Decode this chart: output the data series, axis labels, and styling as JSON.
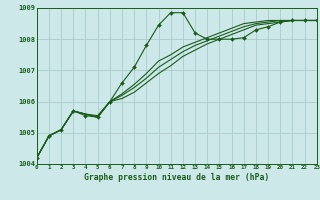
{
  "bg_color": "#cde8e8",
  "grid_color": "#aacccc",
  "line_color": "#1a5c1a",
  "xlabel": "Graphe pression niveau de la mer (hPa)",
  "ylim": [
    1004,
    1009
  ],
  "xlim": [
    0,
    23
  ],
  "yticks": [
    1004,
    1005,
    1006,
    1007,
    1008,
    1009
  ],
  "xticks": [
    0,
    1,
    2,
    3,
    4,
    5,
    6,
    7,
    8,
    9,
    10,
    11,
    12,
    13,
    14,
    15,
    16,
    17,
    18,
    19,
    20,
    21,
    22,
    23
  ],
  "series": [
    [
      1004.2,
      1004.9,
      1005.1,
      1005.7,
      1005.55,
      1005.5,
      1006.0,
      1006.6,
      1007.1,
      1007.8,
      1008.45,
      1008.85,
      1008.85,
      1008.2,
      1008.0,
      1008.0,
      1008.0,
      1008.05,
      1008.3,
      1008.4,
      1008.55,
      1008.6,
      1008.6,
      1008.6
    ],
    [
      1004.2,
      1004.9,
      1005.1,
      1005.7,
      1005.6,
      1005.55,
      1006.0,
      1006.25,
      1006.55,
      1006.9,
      1007.3,
      1007.5,
      1007.75,
      1007.9,
      1008.05,
      1008.2,
      1008.35,
      1008.5,
      1008.55,
      1008.6,
      1008.6,
      1008.6,
      1008.6,
      1008.6
    ],
    [
      1004.2,
      1004.9,
      1005.1,
      1005.7,
      1005.6,
      1005.5,
      1006.0,
      1006.2,
      1006.45,
      1006.75,
      1007.1,
      1007.35,
      1007.6,
      1007.8,
      1007.95,
      1008.1,
      1008.25,
      1008.4,
      1008.5,
      1008.55,
      1008.6,
      1008.6,
      1008.6,
      1008.6
    ],
    [
      1004.2,
      1004.9,
      1005.1,
      1005.7,
      1005.6,
      1005.5,
      1006.0,
      1006.1,
      1006.3,
      1006.6,
      1006.9,
      1007.15,
      1007.45,
      1007.65,
      1007.85,
      1008.0,
      1008.15,
      1008.3,
      1008.45,
      1008.5,
      1008.55,
      1008.6,
      1008.6,
      1008.6
    ]
  ]
}
